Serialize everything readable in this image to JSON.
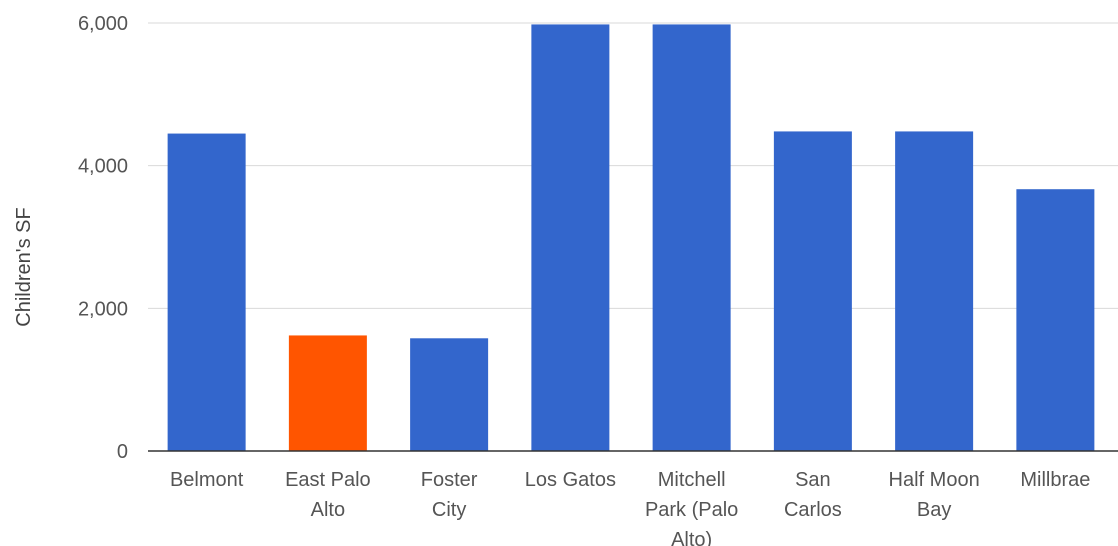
{
  "chart_data": {
    "type": "bar",
    "title": "",
    "xlabel": "",
    "ylabel": "Children's SF",
    "ylim": [
      0,
      6000
    ],
    "yticks": [
      0,
      2000,
      4000,
      6000
    ],
    "ytick_labels": [
      "0",
      "2,000",
      "4,000",
      "6,000"
    ],
    "grid": true,
    "legend": "none",
    "categories": [
      "Belmont",
      "East Palo Alto",
      "Foster City",
      "Los Gatos",
      "Mitchell Park (Palo Alto)",
      "San Carlos",
      "Half Moon Bay",
      "Millbrae"
    ],
    "category_label_lines": [
      [
        "Belmont"
      ],
      [
        "East Palo",
        "Alto"
      ],
      [
        "Foster",
        "City"
      ],
      [
        "Los Gatos"
      ],
      [
        "Mitchell",
        "Park (Palo",
        "Alto)"
      ],
      [
        "San",
        "Carlos"
      ],
      [
        "Half Moon",
        "Bay"
      ],
      [
        "Millbrae"
      ]
    ],
    "values": [
      4450,
      1620,
      1580,
      5980,
      5980,
      4480,
      4480,
      3670
    ],
    "bar_colors": [
      "#3366cc",
      "#ff5500",
      "#3366cc",
      "#3366cc",
      "#3366cc",
      "#3366cc",
      "#3366cc",
      "#3366cc"
    ]
  }
}
